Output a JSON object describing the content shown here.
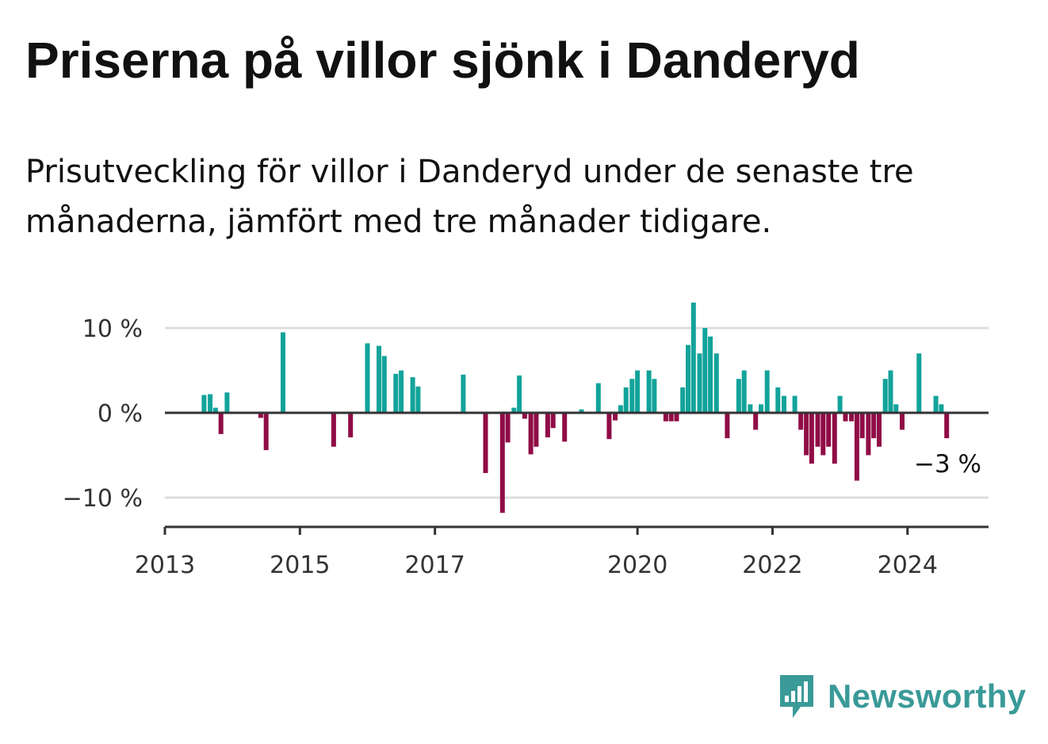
{
  "title": "Priserna på villor sjönk i Danderyd",
  "subtitle": "Prisutveckling för villor i Danderyd under de senaste tre månaderna, jämfört med tre månader tidigare.",
  "brand": "Newsworthy",
  "colors": {
    "positive": "#12a39a",
    "negative": "#900c46",
    "grid": "#dddddd",
    "axis": "#333333",
    "brand": "#3a9a98"
  },
  "chart_data": {
    "type": "bar",
    "title": "Priserna på villor sjönk i Danderyd",
    "ylabel": "",
    "xlabel": "",
    "ylim": [
      -13.5,
      15.5
    ],
    "y_ticks": [
      {
        "value": 10,
        "label": "10 %"
      },
      {
        "value": 0,
        "label": "0 %"
      },
      {
        "value": -10,
        "label": "−10 %"
      }
    ],
    "x_range": [
      2013.0,
      2025.2
    ],
    "x_ticks": [
      {
        "value": 2013,
        "label": "2013"
      },
      {
        "value": 2015,
        "label": "2015"
      },
      {
        "value": 2017,
        "label": "2017"
      },
      {
        "value": 2020,
        "label": "2020"
      },
      {
        "value": 2022,
        "label": "2022"
      },
      {
        "value": 2024,
        "label": "2024"
      }
    ],
    "last_value_label": "−3 %",
    "series": [
      {
        "name": "Prisutveckling (%)",
        "points": [
          {
            "x": 2013.58,
            "y": 2.1
          },
          {
            "x": 2013.67,
            "y": 2.2
          },
          {
            "x": 2013.75,
            "y": 0.6
          },
          {
            "x": 2013.83,
            "y": -2.5
          },
          {
            "x": 2013.92,
            "y": 2.4
          },
          {
            "x": 2014.42,
            "y": -0.6
          },
          {
            "x": 2014.5,
            "y": -4.4
          },
          {
            "x": 2014.75,
            "y": 9.5
          },
          {
            "x": 2015.5,
            "y": -4.0
          },
          {
            "x": 2015.75,
            "y": -2.9
          },
          {
            "x": 2016.0,
            "y": 8.2
          },
          {
            "x": 2016.17,
            "y": 7.9
          },
          {
            "x": 2016.25,
            "y": 6.7
          },
          {
            "x": 2016.42,
            "y": 4.6
          },
          {
            "x": 2016.5,
            "y": 5.0
          },
          {
            "x": 2016.67,
            "y": 4.2
          },
          {
            "x": 2016.75,
            "y": 3.1
          },
          {
            "x": 2017.42,
            "y": 4.5
          },
          {
            "x": 2017.75,
            "y": -7.1
          },
          {
            "x": 2018.0,
            "y": -11.8
          },
          {
            "x": 2018.08,
            "y": -3.5
          },
          {
            "x": 2018.17,
            "y": 0.6
          },
          {
            "x": 2018.25,
            "y": 4.4
          },
          {
            "x": 2018.33,
            "y": -0.7
          },
          {
            "x": 2018.42,
            "y": -4.9
          },
          {
            "x": 2018.5,
            "y": -4.0
          },
          {
            "x": 2018.67,
            "y": -2.9
          },
          {
            "x": 2018.75,
            "y": -1.8
          },
          {
            "x": 2018.92,
            "y": -3.4
          },
          {
            "x": 2019.17,
            "y": 0.4
          },
          {
            "x": 2019.42,
            "y": 3.5
          },
          {
            "x": 2019.58,
            "y": -3.1
          },
          {
            "x": 2019.67,
            "y": -0.9
          },
          {
            "x": 2019.75,
            "y": 0.9
          },
          {
            "x": 2019.83,
            "y": 3.0
          },
          {
            "x": 2019.92,
            "y": 4.0
          },
          {
            "x": 2020.0,
            "y": 5.0
          },
          {
            "x": 2020.17,
            "y": 5.0
          },
          {
            "x": 2020.25,
            "y": 4.0
          },
          {
            "x": 2020.42,
            "y": -1.0
          },
          {
            "x": 2020.5,
            "y": -1.0
          },
          {
            "x": 2020.58,
            "y": -1.0
          },
          {
            "x": 2020.67,
            "y": 3.0
          },
          {
            "x": 2020.75,
            "y": 8.0
          },
          {
            "x": 2020.83,
            "y": 13.0
          },
          {
            "x": 2020.92,
            "y": 7.0
          },
          {
            "x": 2021.0,
            "y": 10.0
          },
          {
            "x": 2021.08,
            "y": 9.0
          },
          {
            "x": 2021.17,
            "y": 7.0
          },
          {
            "x": 2021.33,
            "y": -3.0
          },
          {
            "x": 2021.5,
            "y": 4.0
          },
          {
            "x": 2021.58,
            "y": 5.0
          },
          {
            "x": 2021.67,
            "y": 1.0
          },
          {
            "x": 2021.75,
            "y": -2.0
          },
          {
            "x": 2021.83,
            "y": 1.0
          },
          {
            "x": 2021.92,
            "y": 5.0
          },
          {
            "x": 2022.08,
            "y": 3.0
          },
          {
            "x": 2022.17,
            "y": 2.0
          },
          {
            "x": 2022.33,
            "y": 2.0
          },
          {
            "x": 2022.42,
            "y": -2.0
          },
          {
            "x": 2022.5,
            "y": -5.0
          },
          {
            "x": 2022.58,
            "y": -6.0
          },
          {
            "x": 2022.67,
            "y": -4.0
          },
          {
            "x": 2022.75,
            "y": -5.0
          },
          {
            "x": 2022.83,
            "y": -4.0
          },
          {
            "x": 2022.92,
            "y": -6.0
          },
          {
            "x": 2023.0,
            "y": 2.0
          },
          {
            "x": 2023.08,
            "y": -1.0
          },
          {
            "x": 2023.17,
            "y": -1.0
          },
          {
            "x": 2023.25,
            "y": -8.0
          },
          {
            "x": 2023.33,
            "y": -3.0
          },
          {
            "x": 2023.42,
            "y": -5.0
          },
          {
            "x": 2023.5,
            "y": -3.0
          },
          {
            "x": 2023.58,
            "y": -4.0
          },
          {
            "x": 2023.67,
            "y": 4.0
          },
          {
            "x": 2023.75,
            "y": 5.0
          },
          {
            "x": 2023.83,
            "y": 1.0
          },
          {
            "x": 2023.92,
            "y": -2.0
          },
          {
            "x": 2024.17,
            "y": 7.0
          },
          {
            "x": 2024.42,
            "y": 2.0
          },
          {
            "x": 2024.5,
            "y": 1.0
          },
          {
            "x": 2024.58,
            "y": -3.0
          }
        ]
      }
    ]
  }
}
